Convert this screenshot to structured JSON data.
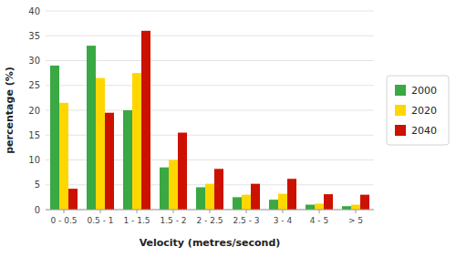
{
  "chart_data": {
    "type": "bar",
    "categories": [
      "0 - 0.5",
      "0.5 - 1",
      "1 - 1.5",
      "1.5 - 2",
      "2 - 2.5",
      "2.5 - 3",
      "3 - 4",
      "4 - 5",
      "> 5"
    ],
    "series": [
      {
        "name": "2000",
        "color": "#3AA843",
        "values": [
          29.0,
          33.0,
          20.0,
          8.5,
          4.5,
          2.5,
          2.0,
          1.0,
          0.7
        ]
      },
      {
        "name": "2020",
        "color": "#FFD700",
        "values": [
          21.5,
          26.5,
          27.5,
          10.0,
          5.2,
          3.0,
          3.2,
          1.2,
          1.0
        ]
      },
      {
        "name": "2040",
        "color": "#CC1100",
        "values": [
          4.2,
          19.5,
          36.0,
          15.5,
          8.2,
          5.2,
          6.2,
          3.1,
          3.0
        ]
      }
    ],
    "xlabel": "Velocity (metres/second)",
    "ylabel": "percentage (%)",
    "ylim": [
      0,
      40
    ],
    "yticks": [
      0,
      5,
      10,
      15,
      20,
      25,
      30,
      35,
      40
    ],
    "grid": true,
    "legend": "right"
  }
}
